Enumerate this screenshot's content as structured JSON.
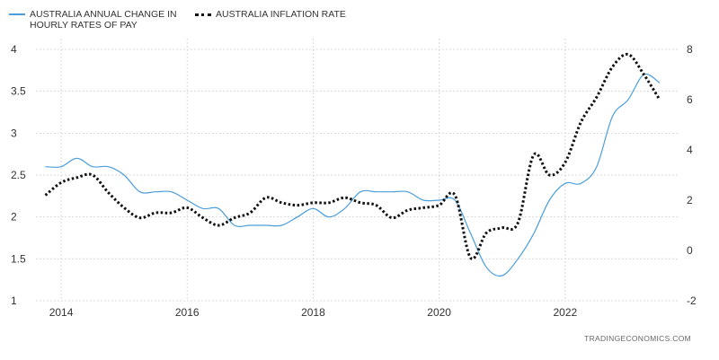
{
  "chart_data": {
    "type": "line",
    "title": "",
    "legend_position": "top-left",
    "grid": true,
    "x_ticks": [
      "2014",
      "2016",
      "2018",
      "2020",
      "2022"
    ],
    "x_range": [
      2013.6,
      2023.8
    ],
    "y_left": {
      "range": [
        1,
        4
      ],
      "ticks": [
        "1",
        "1.5",
        "2",
        "2.5",
        "3",
        "3.5",
        "4"
      ]
    },
    "y_right": {
      "range": [
        -2,
        8
      ],
      "ticks": [
        "-2",
        "0",
        "2",
        "4",
        "6",
        "8"
      ]
    },
    "series": [
      {
        "name": "AUSTRALIA ANNUAL CHANGE IN HOURLY RATES OF PAY",
        "axis": "left",
        "style": "solid",
        "color": "#4a9edb",
        "x": [
          2013.75,
          2014.0,
          2014.25,
          2014.5,
          2014.75,
          2015.0,
          2015.25,
          2015.5,
          2015.75,
          2016.0,
          2016.25,
          2016.5,
          2016.75,
          2017.0,
          2017.25,
          2017.5,
          2017.75,
          2018.0,
          2018.25,
          2018.5,
          2018.75,
          2019.0,
          2019.25,
          2019.5,
          2019.75,
          2020.0,
          2020.25,
          2020.5,
          2020.75,
          2021.0,
          2021.25,
          2021.5,
          2021.75,
          2022.0,
          2022.25,
          2022.5,
          2022.75,
          2023.0,
          2023.25,
          2023.5
        ],
        "y": [
          2.6,
          2.6,
          2.7,
          2.6,
          2.6,
          2.5,
          2.3,
          2.3,
          2.3,
          2.2,
          2.1,
          2.1,
          1.9,
          1.9,
          1.9,
          1.9,
          2.0,
          2.1,
          2.0,
          2.1,
          2.3,
          2.3,
          2.3,
          2.3,
          2.2,
          2.2,
          2.2,
          1.8,
          1.4,
          1.3,
          1.5,
          1.8,
          2.2,
          2.4,
          2.4,
          2.6,
          3.2,
          3.4,
          3.7,
          3.6
        ]
      },
      {
        "name": "AUSTRALIA INFLATION RATE",
        "axis": "right",
        "style": "dotted",
        "color": "#111111",
        "x": [
          2013.75,
          2014.0,
          2014.25,
          2014.5,
          2014.75,
          2015.0,
          2015.25,
          2015.5,
          2015.75,
          2016.0,
          2016.25,
          2016.5,
          2016.75,
          2017.0,
          2017.25,
          2017.5,
          2017.75,
          2018.0,
          2018.25,
          2018.5,
          2018.75,
          2019.0,
          2019.25,
          2019.5,
          2019.75,
          2020.0,
          2020.25,
          2020.5,
          2020.75,
          2021.0,
          2021.25,
          2021.5,
          2021.75,
          2022.0,
          2022.25,
          2022.5,
          2022.75,
          2023.0,
          2023.25,
          2023.5
        ],
        "y": [
          2.2,
          2.7,
          2.9,
          3.0,
          2.3,
          1.7,
          1.3,
          1.5,
          1.5,
          1.7,
          1.3,
          1.0,
          1.3,
          1.5,
          2.1,
          1.9,
          1.8,
          1.9,
          1.9,
          2.1,
          1.9,
          1.8,
          1.3,
          1.6,
          1.7,
          1.8,
          2.2,
          -0.3,
          0.7,
          0.9,
          1.1,
          3.8,
          3.0,
          3.5,
          5.1,
          6.1,
          7.3,
          7.8,
          7.0,
          6.0
        ]
      }
    ]
  },
  "source": "TRADINGECONOMICS.COM"
}
